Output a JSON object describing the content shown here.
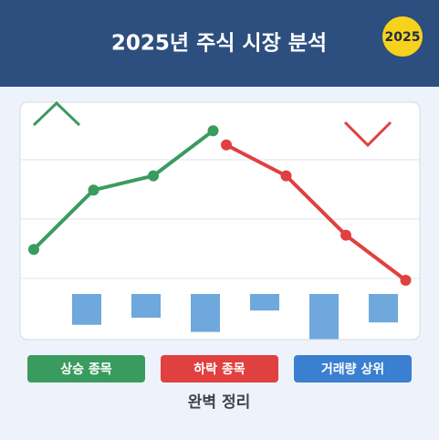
{
  "header": {
    "title": "2025년 주식 시장 분석",
    "badge": "2025"
  },
  "chart_data": {
    "type": "line",
    "ylim": [
      0,
      100
    ],
    "series": [
      {
        "color": "#3a9b5f",
        "values": [
          38,
          63,
          69,
          88
        ]
      },
      {
        "color": "#e0403f",
        "values": [
          82,
          69,
          44,
          25
        ]
      }
    ],
    "bars": {
      "color": "#6fa8dc",
      "values": [
        13,
        10,
        16,
        7,
        19,
        12
      ]
    }
  },
  "buttons": [
    {
      "label": "상승 종목",
      "color": "#3a9b5f"
    },
    {
      "label": "하락 종목",
      "color": "#e0403f"
    },
    {
      "label": "거래량 상위",
      "color": "#3a7fd0"
    }
  ],
  "footer": "완벽 정리"
}
